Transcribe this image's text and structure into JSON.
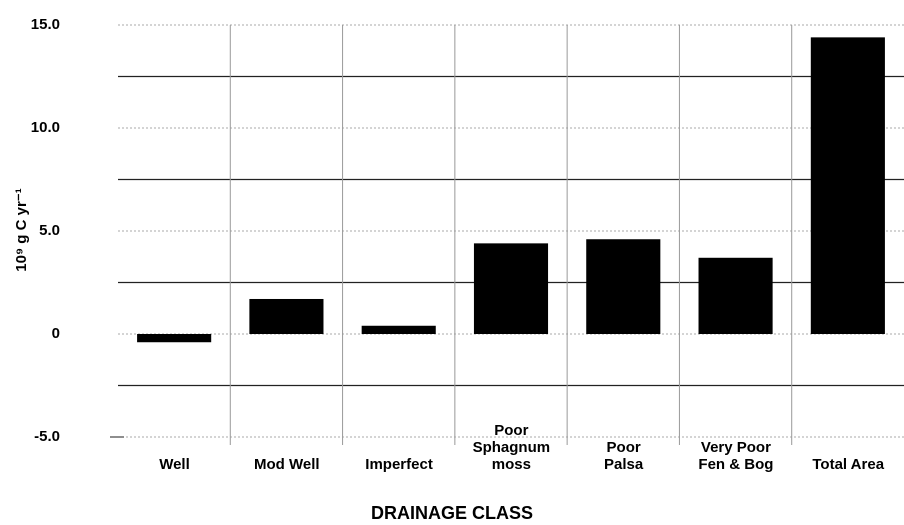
{
  "chart_data": {
    "type": "bar",
    "y_label": "10⁹ g C yr⁻¹",
    "x_label": "DRAINAGE CLASS",
    "categories": [
      "Well",
      "Mod Well",
      "Imperfect",
      "Poor\nSphagnum\nmoss",
      "Poor\nPalsa",
      "Very Poor\nFen & Bog",
      "Total Area"
    ],
    "values": [
      -0.4,
      1.7,
      0.4,
      4.4,
      4.6,
      3.7,
      14.4
    ],
    "color": "#000000",
    "ylim": [
      -5,
      15
    ],
    "yticks": [
      {
        "value": -5,
        "label": "-5.0"
      },
      0,
      {
        "value": 5,
        "label": "5.0"
      },
      {
        "value": 10,
        "label": "10.0"
      },
      {
        "value": 15,
        "label": "15.0"
      }
    ],
    "minor_yticks": [
      -2.5,
      2.5,
      7.5,
      12.5
    ],
    "grid": true
  }
}
